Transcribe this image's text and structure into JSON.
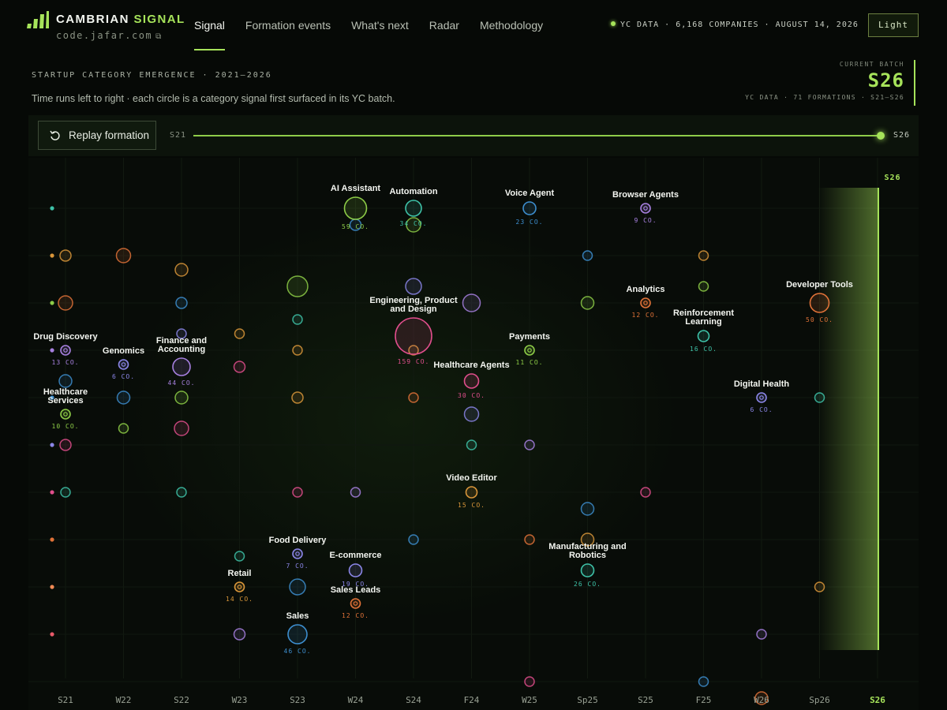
{
  "header": {
    "brand_a": "CAMBRIAN",
    "brand_b": "SIGNAL",
    "domain": "code.jafar.com",
    "external_icon": "external-link-icon",
    "nav": [
      {
        "label": "Signal",
        "active": true
      },
      {
        "label": "Formation events"
      },
      {
        "label": "What's next"
      },
      {
        "label": "Radar"
      },
      {
        "label": "Methodology"
      }
    ],
    "status": "YC DATA · 6,168 COMPANIES · AUGUST 14, 2026",
    "theme_button": "Light"
  },
  "intro": {
    "kicker": "STARTUP CATEGORY EMERGENCE · 2021–2026",
    "subtitle": "Time runs left to right · each circle is a category signal first surfaced in its YC batch."
  },
  "batch_panel": {
    "label": "CURRENT BATCH",
    "value": "S26",
    "meta": "YC DATA · 71 FORMATIONS · S21–S26"
  },
  "controls": {
    "replay_label": "Replay formation",
    "timeline_start": "S21",
    "timeline_end": "S26",
    "progress": 1.0
  },
  "colors": {
    "accent": "#a6e35a",
    "background": "#060906"
  },
  "chart_data": {
    "type": "scatter",
    "x_categories": [
      "S21",
      "W22",
      "S22",
      "W23",
      "S23",
      "W24",
      "S24",
      "F24",
      "W25",
      "Sp25",
      "S25",
      "F25",
      "W26",
      "Sp26",
      "S26"
    ],
    "current_batch": "S26",
    "lane_colors": [
      "#3ec2a8",
      "#d9963a",
      "#8dcc47",
      "#a780e0",
      "#3d8ecf",
      "#8b86e8",
      "#e04e8c",
      "#e07238",
      "#f08a55",
      "#e85a6a"
    ],
    "labeled": [
      {
        "name": "AI Assistant",
        "x": "W24",
        "lane": 0.0,
        "count": "59 CO.",
        "size": 14,
        "color": "#8dcc47"
      },
      {
        "name": "Automation",
        "x": "S24",
        "lane": 0.0,
        "count": "34 CO.",
        "size": 10,
        "color": "#3ec2a8"
      },
      {
        "name": "Voice Agent",
        "x": "W25",
        "lane": 0.0,
        "count": "23 CO.",
        "size": 8,
        "color": "#3d8ecf"
      },
      {
        "name": "Browser Agents",
        "x": "S25",
        "lane": 0.0,
        "count": "9 CO.",
        "size": 6,
        "color": "#a780e0"
      },
      {
        "name": "Engineering, Product and Design",
        "x": "S24",
        "lane": 2.7,
        "count": "159 CO.",
        "size": 23,
        "color": "#e04e8c"
      },
      {
        "name": "Analytics",
        "x": "S25",
        "lane": 2.0,
        "count": "12 CO.",
        "size": 6,
        "color": "#e07238"
      },
      {
        "name": "Reinforcement Learning",
        "x": "F25",
        "lane": 2.7,
        "count": "16 CO.",
        "size": 7,
        "color": "#3ec2a8"
      },
      {
        "name": "Developer Tools",
        "x": "Sp26",
        "lane": 2.0,
        "count": "50 CO.",
        "size": 12,
        "color": "#e07238"
      },
      {
        "name": "Drug Discovery",
        "x": "S21",
        "lane": 3.0,
        "count": "13 CO.",
        "size": 6,
        "color": "#a780e0"
      },
      {
        "name": "Genomics",
        "x": "W22",
        "lane": 3.3,
        "count": "6 CO.",
        "size": 6,
        "color": "#8b86e8"
      },
      {
        "name": "Finance and Accounting",
        "x": "S22",
        "lane": 3.35,
        "count": "44 CO.",
        "size": 11,
        "color": "#a780e0"
      },
      {
        "name": "Payments",
        "x": "W25",
        "lane": 3.0,
        "count": "11 CO.",
        "size": 6,
        "color": "#8dcc47"
      },
      {
        "name": "Healthcare Agents",
        "x": "F24",
        "lane": 3.65,
        "count": "30 CO.",
        "size": 9,
        "color": "#e04e8c"
      },
      {
        "name": "Healthcare Services",
        "x": "S21",
        "lane": 4.35,
        "count": "10 CO.",
        "size": 6,
        "color": "#8dcc47"
      },
      {
        "name": "Digital Health",
        "x": "W26",
        "lane": 4.0,
        "count": "6 CO.",
        "size": 6,
        "color": "#8b86e8"
      },
      {
        "name": "Video Editor",
        "x": "F24",
        "lane": 6.0,
        "count": "15 CO.",
        "size": 7,
        "color": "#d9963a"
      },
      {
        "name": "Food Delivery",
        "x": "S23",
        "lane": 7.3,
        "count": "7 CO.",
        "size": 6,
        "color": "#8b86e8"
      },
      {
        "name": "E-commerce",
        "x": "W24",
        "lane": 7.65,
        "count": "19 CO.",
        "size": 8,
        "color": "#8b86e8"
      },
      {
        "name": "Manufacturing and Robotics",
        "x": "Sp25",
        "lane": 7.65,
        "count": "26 CO.",
        "size": 8,
        "color": "#3ec2a8"
      },
      {
        "name": "Retail",
        "x": "W23",
        "lane": 8.0,
        "count": "14 CO.",
        "size": 6,
        "color": "#d9963a"
      },
      {
        "name": "Sales Leads",
        "x": "W24",
        "lane": 8.35,
        "count": "12 CO.",
        "size": 6,
        "color": "#e07238"
      },
      {
        "name": "Sales",
        "x": "S23",
        "lane": 9.0,
        "count": "46 CO.",
        "size": 12,
        "color": "#3d8ecf"
      }
    ],
    "unlabeled": [
      {
        "x": "W24",
        "lane": 0.35,
        "size": 7,
        "color": "#3d8ecf"
      },
      {
        "x": "S24",
        "lane": 0.35,
        "size": 9,
        "color": "#8dcc47"
      },
      {
        "x": "S21",
        "lane": 1.0,
        "size": 7,
        "color": "#d9963a"
      },
      {
        "x": "W22",
        "lane": 1.0,
        "size": 9,
        "color": "#e07238"
      },
      {
        "x": "S22",
        "lane": 1.3,
        "size": 8,
        "color": "#d9963a"
      },
      {
        "x": "Sp25",
        "lane": 1.0,
        "size": 6,
        "color": "#3d8ecf"
      },
      {
        "x": "F25",
        "lane": 1.0,
        "size": 6,
        "color": "#d9963a"
      },
      {
        "x": "S21",
        "lane": 2.0,
        "size": 9,
        "color": "#e07238"
      },
      {
        "x": "S22",
        "lane": 2.0,
        "size": 7,
        "color": "#3d8ecf"
      },
      {
        "x": "S23",
        "lane": 1.65,
        "size": 13,
        "color": "#8dcc47"
      },
      {
        "x": "S24",
        "lane": 1.65,
        "size": 10,
        "color": "#8b86e8"
      },
      {
        "x": "F24",
        "lane": 2.0,
        "size": 11,
        "color": "#a780e0"
      },
      {
        "x": "Sp25",
        "lane": 2.0,
        "size": 8,
        "color": "#8dcc47"
      },
      {
        "x": "F25",
        "lane": 1.65,
        "size": 6,
        "color": "#8dcc47"
      },
      {
        "x": "S23",
        "lane": 2.35,
        "size": 6,
        "color": "#3ec2a8"
      },
      {
        "x": "S22",
        "lane": 2.65,
        "size": 6,
        "color": "#8b86e8"
      },
      {
        "x": "W23",
        "lane": 2.65,
        "size": 6,
        "color": "#d9963a"
      },
      {
        "x": "S23",
        "lane": 3.0,
        "size": 6,
        "color": "#d9963a"
      },
      {
        "x": "S24",
        "lane": 3.0,
        "size": 6,
        "color": "#d9963a"
      },
      {
        "x": "W23",
        "lane": 3.35,
        "size": 7,
        "color": "#e04e8c"
      },
      {
        "x": "S21",
        "lane": 3.65,
        "size": 8,
        "color": "#3d8ecf"
      },
      {
        "x": "W22",
        "lane": 4.0,
        "size": 8,
        "color": "#3d8ecf"
      },
      {
        "x": "S22",
        "lane": 4.0,
        "size": 8,
        "color": "#8dcc47"
      },
      {
        "x": "S23",
        "lane": 4.0,
        "size": 7,
        "color": "#d9963a"
      },
      {
        "x": "S24",
        "lane": 4.0,
        "size": 6,
        "color": "#e07238"
      },
      {
        "x": "F24",
        "lane": 4.35,
        "size": 9,
        "color": "#8b86e8"
      },
      {
        "x": "Sp26",
        "lane": 4.0,
        "size": 6,
        "color": "#3ec2a8"
      },
      {
        "x": "W22",
        "lane": 4.65,
        "size": 6,
        "color": "#8dcc47"
      },
      {
        "x": "S22",
        "lane": 4.65,
        "size": 9,
        "color": "#e04e8c"
      },
      {
        "x": "S21",
        "lane": 5.0,
        "size": 7,
        "color": "#e04e8c"
      },
      {
        "x": "F24",
        "lane": 5.0,
        "size": 6,
        "color": "#3ec2a8"
      },
      {
        "x": "W25",
        "lane": 5.0,
        "size": 6,
        "color": "#a780e0"
      },
      {
        "x": "S21",
        "lane": 6.0,
        "size": 6,
        "color": "#3ec2a8"
      },
      {
        "x": "S22",
        "lane": 6.0,
        "size": 6,
        "color": "#3ec2a8"
      },
      {
        "x": "S23",
        "lane": 6.0,
        "size": 6,
        "color": "#e04e8c"
      },
      {
        "x": "W24",
        "lane": 6.0,
        "size": 6,
        "color": "#a780e0"
      },
      {
        "x": "S25",
        "lane": 6.0,
        "size": 6,
        "color": "#e04e8c"
      },
      {
        "x": "Sp25",
        "lane": 6.35,
        "size": 8,
        "color": "#3d8ecf"
      },
      {
        "x": "S24",
        "lane": 7.0,
        "size": 6,
        "color": "#3d8ecf"
      },
      {
        "x": "W25",
        "lane": 7.0,
        "size": 6,
        "color": "#e07238"
      },
      {
        "x": "Sp25",
        "lane": 7.0,
        "size": 8,
        "color": "#d9963a"
      },
      {
        "x": "W23",
        "lane": 7.35,
        "size": 6,
        "color": "#3ec2a8"
      },
      {
        "x": "S23",
        "lane": 8.0,
        "size": 10,
        "color": "#3d8ecf"
      },
      {
        "x": "Sp26",
        "lane": 8.0,
        "size": 6,
        "color": "#d9963a"
      },
      {
        "x": "W23",
        "lane": 9.0,
        "size": 7,
        "color": "#a780e0"
      },
      {
        "x": "W25",
        "lane": 10.0,
        "size": 6,
        "color": "#e04e8c"
      },
      {
        "x": "F25",
        "lane": 10.0,
        "size": 6,
        "color": "#3d8ecf"
      },
      {
        "x": "W26",
        "lane": 9.0,
        "size": 6,
        "color": "#a780e0"
      },
      {
        "x": "W26",
        "lane": 10.35,
        "size": 8,
        "color": "#e07238"
      }
    ]
  }
}
